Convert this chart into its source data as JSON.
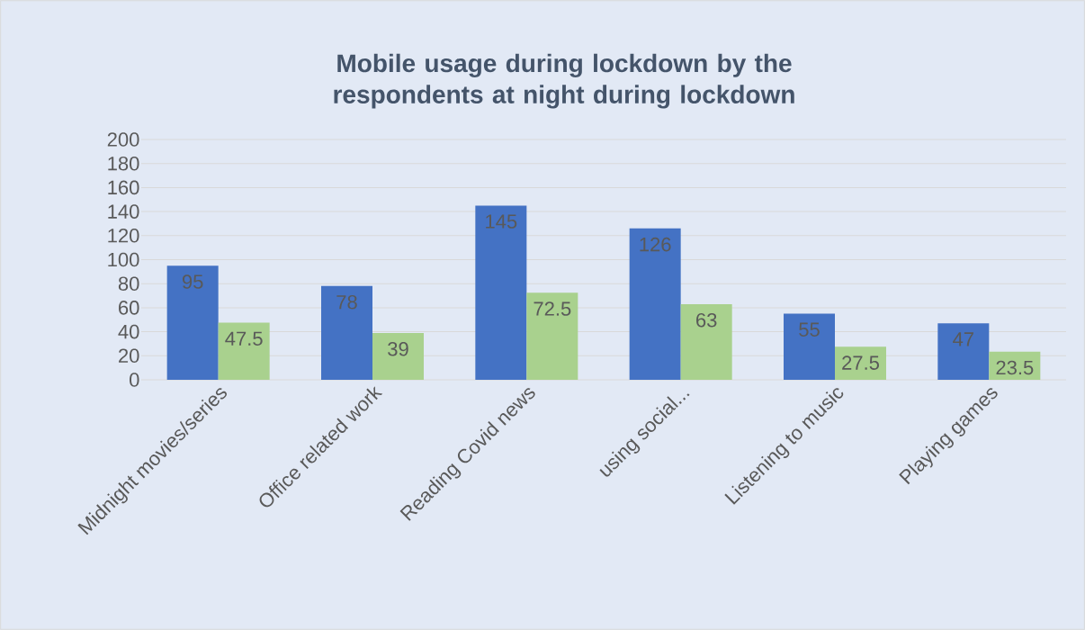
{
  "chart_data": {
    "type": "bar",
    "title": "Mobile usage during lockdown by the respondents at night during lockdown",
    "categories": [
      "Midnight movies/series",
      "Office related work",
      "Reading Covid news",
      "using social...",
      "Listening to music",
      "Playing games"
    ],
    "series": [
      {
        "color": "#4472c4",
        "values": [
          95,
          78,
          145,
          126,
          55,
          47
        ]
      },
      {
        "color": "#a9d18e",
        "values": [
          47.5,
          39,
          72.5,
          63,
          27.5,
          23.5
        ]
      }
    ],
    "ylim": [
      0,
      200
    ],
    "yticks": [
      0,
      20,
      40,
      60,
      80,
      100,
      120,
      140,
      160,
      180,
      200
    ],
    "grid": "y",
    "data_labels": true
  }
}
